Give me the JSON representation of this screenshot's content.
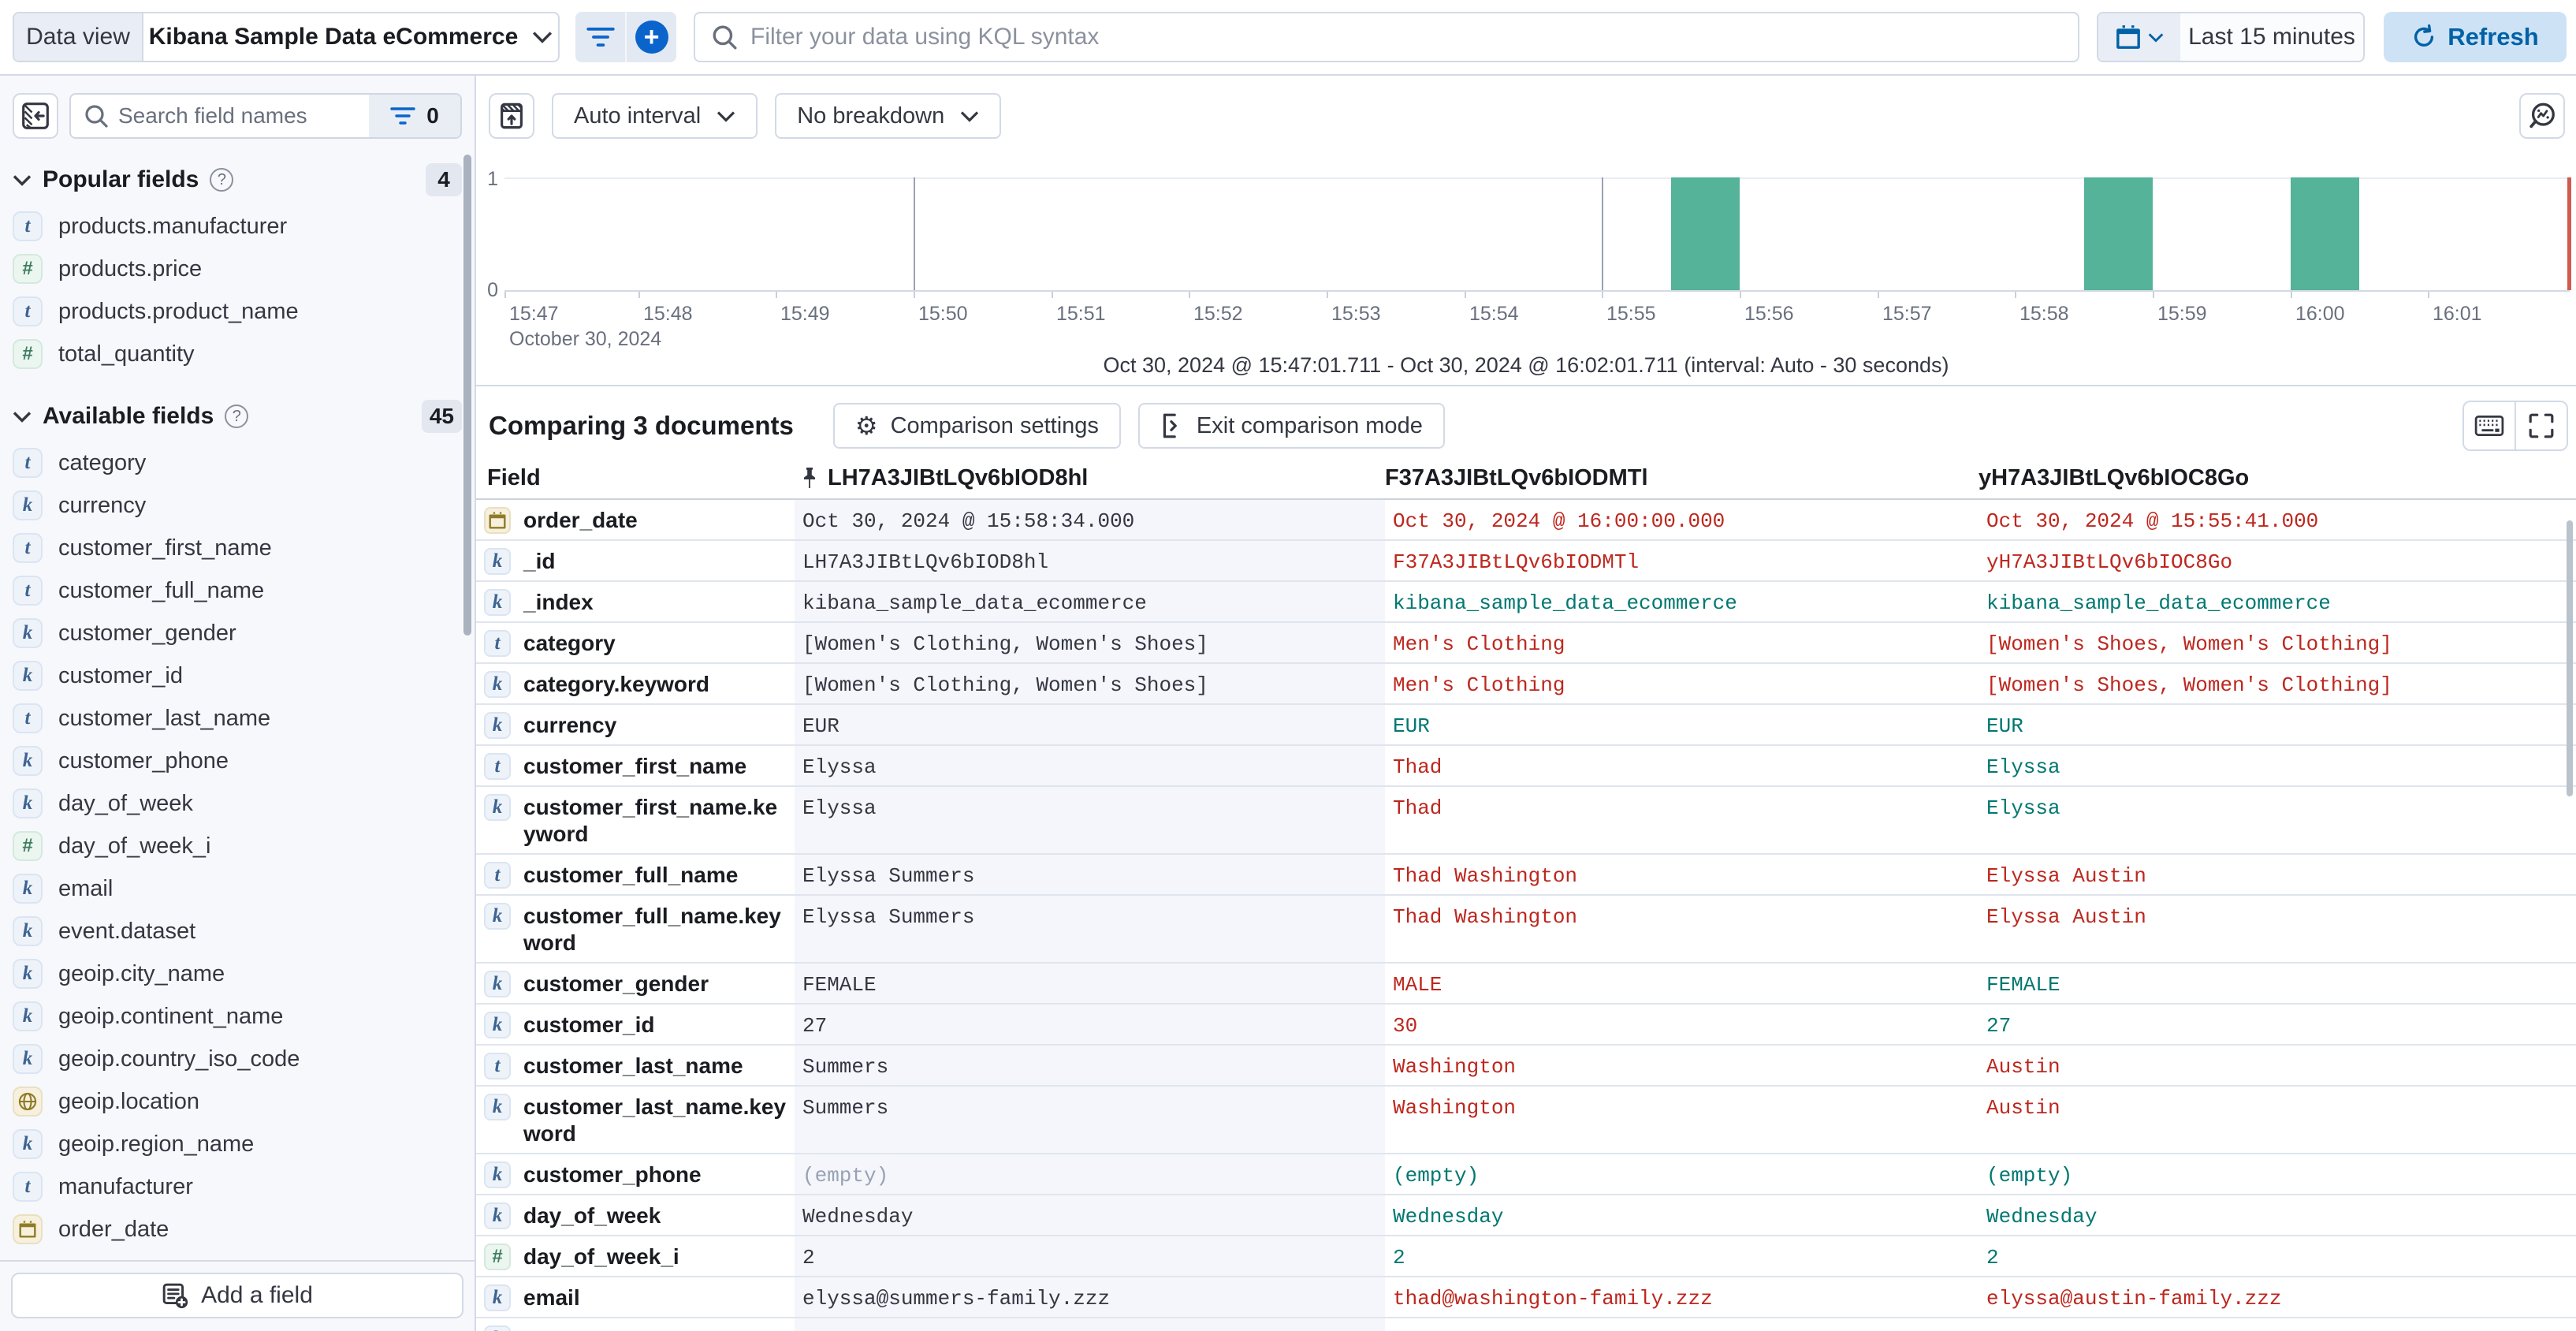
{
  "colors": {
    "accent_blue": "#0b64cc",
    "link_blue": "#0061a6",
    "bar_green": "#54B399",
    "diff_red": "#bd271e",
    "match_green": "#007871",
    "now_line": "#cf5b4f"
  },
  "top_bar": {
    "data_view_label": "Data view",
    "data_view_value": "Kibana Sample Data eCommerce",
    "kql_placeholder": "Filter your data using KQL syntax",
    "time_range": "Last 15 minutes",
    "refresh_label": "Refresh"
  },
  "sidebar": {
    "search_placeholder": "Search field names",
    "filter_count": "0",
    "sections": [
      {
        "label": "Popular fields",
        "count": "4",
        "fields": [
          {
            "name": "products.manufacturer",
            "type": "text"
          },
          {
            "name": "products.price",
            "type": "number"
          },
          {
            "name": "products.product_name",
            "type": "text"
          },
          {
            "name": "total_quantity",
            "type": "number"
          }
        ]
      },
      {
        "label": "Available fields",
        "count": "45",
        "fields": [
          {
            "name": "category",
            "type": "text"
          },
          {
            "name": "currency",
            "type": "keyword"
          },
          {
            "name": "customer_first_name",
            "type": "text"
          },
          {
            "name": "customer_full_name",
            "type": "text"
          },
          {
            "name": "customer_gender",
            "type": "keyword"
          },
          {
            "name": "customer_id",
            "type": "keyword"
          },
          {
            "name": "customer_last_name",
            "type": "text"
          },
          {
            "name": "customer_phone",
            "type": "keyword"
          },
          {
            "name": "day_of_week",
            "type": "keyword"
          },
          {
            "name": "day_of_week_i",
            "type": "number"
          },
          {
            "name": "email",
            "type": "keyword"
          },
          {
            "name": "event.dataset",
            "type": "keyword"
          },
          {
            "name": "geoip.city_name",
            "type": "keyword"
          },
          {
            "name": "geoip.continent_name",
            "type": "keyword"
          },
          {
            "name": "geoip.country_iso_code",
            "type": "keyword"
          },
          {
            "name": "geoip.location",
            "type": "geo_point"
          },
          {
            "name": "geoip.region_name",
            "type": "keyword"
          },
          {
            "name": "manufacturer",
            "type": "text"
          },
          {
            "name": "order_date",
            "type": "date"
          }
        ]
      }
    ],
    "add_field_label": "Add a field"
  },
  "chart_controls": {
    "interval_label": "Auto interval",
    "breakdown_label": "No breakdown"
  },
  "chart_data": {
    "type": "bar",
    "x_start": "15:47:01.711",
    "x_end": "16:02:01.711",
    "interval_seconds": 30,
    "x_ticks": [
      "15:47",
      "15:48",
      "15:49",
      "15:50",
      "15:51",
      "15:52",
      "15:53",
      "15:54",
      "15:55",
      "15:56",
      "15:57",
      "15:58",
      "15:59",
      "16:00",
      "16:01"
    ],
    "x_date_label": "October 30, 2024",
    "y_ticks": [
      "0",
      "1"
    ],
    "ylim": [
      0,
      1
    ],
    "gridlines": [
      "15:50",
      "15:55",
      "16:00"
    ],
    "bars": [
      {
        "time": "15:55:30",
        "count": 1
      },
      {
        "time": "15:58:30",
        "count": 1
      },
      {
        "time": "16:00:00",
        "count": 1
      }
    ],
    "subtitle": "Oct 30, 2024 @ 15:47:01.711 - Oct 30, 2024 @ 16:02:01.711 (interval: Auto - 30 seconds)"
  },
  "comparison": {
    "title": "Comparing 3 documents",
    "settings_label": "Comparison settings",
    "exit_label": "Exit comparison mode",
    "table": {
      "field_header": "Field",
      "doc_headers": [
        "LH7A3JIBtLQv6bIOD8hl",
        "F37A3JIBtLQv6bIODMTl",
        "yH7A3JIBtLQv6bIOC8Go"
      ],
      "rows": [
        {
          "field": "order_date",
          "type": "date",
          "values": [
            {
              "t": "Oct 30, 2024 @ 15:58:34.000",
              "s": "base"
            },
            {
              "t": "Oct 30, 2024 @ 16:00:00.000",
              "s": "diff"
            },
            {
              "t": "Oct 30, 2024 @ 15:55:41.000",
              "s": "diff"
            }
          ]
        },
        {
          "field": "_id",
          "type": "keyword",
          "values": [
            {
              "t": "LH7A3JIBtLQv6bIOD8hl",
              "s": "base"
            },
            {
              "t": "F37A3JIBtLQv6bIODMTl",
              "s": "diff"
            },
            {
              "t": "yH7A3JIBtLQv6bIOC8Go",
              "s": "diff"
            }
          ]
        },
        {
          "field": "_index",
          "type": "keyword",
          "values": [
            {
              "t": "kibana_sample_data_ecommerce",
              "s": "base"
            },
            {
              "t": "kibana_sample_data_ecommerce",
              "s": "match"
            },
            {
              "t": "kibana_sample_data_ecommerce",
              "s": "match"
            }
          ]
        },
        {
          "field": "category",
          "type": "text",
          "values": [
            {
              "t": "[Women's Clothing, Women's Shoes]",
              "s": "base"
            },
            {
              "t": "Men's Clothing",
              "s": "diff"
            },
            {
              "t": "[Women's Shoes, Women's Clothing]",
              "s": "diff"
            }
          ]
        },
        {
          "field": "category.keyword",
          "type": "keyword",
          "values": [
            {
              "t": "[Women's Clothing, Women's Shoes]",
              "s": "base"
            },
            {
              "t": "Men's Clothing",
              "s": "diff"
            },
            {
              "t": "[Women's Shoes, Women's Clothing]",
              "s": "diff"
            }
          ]
        },
        {
          "field": "currency",
          "type": "keyword",
          "values": [
            {
              "t": "EUR",
              "s": "base"
            },
            {
              "t": "EUR",
              "s": "match"
            },
            {
              "t": "EUR",
              "s": "match"
            }
          ]
        },
        {
          "field": "customer_first_name",
          "type": "text",
          "values": [
            {
              "t": "Elyssa",
              "s": "base"
            },
            {
              "t": "Thad",
              "s": "diff"
            },
            {
              "t": "Elyssa",
              "s": "match"
            }
          ]
        },
        {
          "field": "customer_first_name.keyword",
          "type": "keyword",
          "values": [
            {
              "t": "Elyssa",
              "s": "base"
            },
            {
              "t": "Thad",
              "s": "diff"
            },
            {
              "t": "Elyssa",
              "s": "match"
            }
          ]
        },
        {
          "field": "customer_full_name",
          "type": "text",
          "values": [
            {
              "t": "Elyssa Summers",
              "s": "base"
            },
            {
              "t": "Thad Washington",
              "s": "diff"
            },
            {
              "t": "Elyssa Austin",
              "s": "diff"
            }
          ]
        },
        {
          "field": "customer_full_name.keyword",
          "type": "keyword",
          "values": [
            {
              "t": "Elyssa Summers",
              "s": "base"
            },
            {
              "t": "Thad Washington",
              "s": "diff"
            },
            {
              "t": "Elyssa Austin",
              "s": "diff"
            }
          ]
        },
        {
          "field": "customer_gender",
          "type": "keyword",
          "values": [
            {
              "t": "FEMALE",
              "s": "base"
            },
            {
              "t": "MALE",
              "s": "diff"
            },
            {
              "t": "FEMALE",
              "s": "match"
            }
          ]
        },
        {
          "field": "customer_id",
          "type": "keyword",
          "values": [
            {
              "t": "27",
              "s": "base"
            },
            {
              "t": "30",
              "s": "diff"
            },
            {
              "t": "27",
              "s": "match"
            }
          ]
        },
        {
          "field": "customer_last_name",
          "type": "text",
          "values": [
            {
              "t": "Summers",
              "s": "base"
            },
            {
              "t": "Washington",
              "s": "diff"
            },
            {
              "t": "Austin",
              "s": "diff"
            }
          ]
        },
        {
          "field": "customer_last_name.keyword",
          "type": "keyword",
          "values": [
            {
              "t": "Summers",
              "s": "base"
            },
            {
              "t": "Washington",
              "s": "diff"
            },
            {
              "t": "Austin",
              "s": "diff"
            }
          ]
        },
        {
          "field": "customer_phone",
          "type": "keyword",
          "values": [
            {
              "t": "(empty)",
              "s": "muted"
            },
            {
              "t": "(empty)",
              "s": "match"
            },
            {
              "t": "(empty)",
              "s": "match"
            }
          ]
        },
        {
          "field": "day_of_week",
          "type": "keyword",
          "values": [
            {
              "t": "Wednesday",
              "s": "base"
            },
            {
              "t": "Wednesday",
              "s": "match"
            },
            {
              "t": "Wednesday",
              "s": "match"
            }
          ]
        },
        {
          "field": "day_of_week_i",
          "type": "number",
          "values": [
            {
              "t": "2",
              "s": "base"
            },
            {
              "t": "2",
              "s": "match"
            },
            {
              "t": "2",
              "s": "match"
            }
          ]
        },
        {
          "field": "email",
          "type": "keyword",
          "values": [
            {
              "t": "elyssa@summers-family.zzz",
              "s": "base"
            },
            {
              "t": "thad@washington-family.zzz",
              "s": "diff"
            },
            {
              "t": "elyssa@austin-family.zzz",
              "s": "diff"
            }
          ]
        },
        {
          "field": "",
          "type": "keyword",
          "partial": true,
          "values": [
            {
              "t": "",
              "s": "base"
            },
            {
              "t": "",
              "s": "base"
            },
            {
              "t": "",
              "s": "base"
            }
          ]
        }
      ]
    }
  }
}
